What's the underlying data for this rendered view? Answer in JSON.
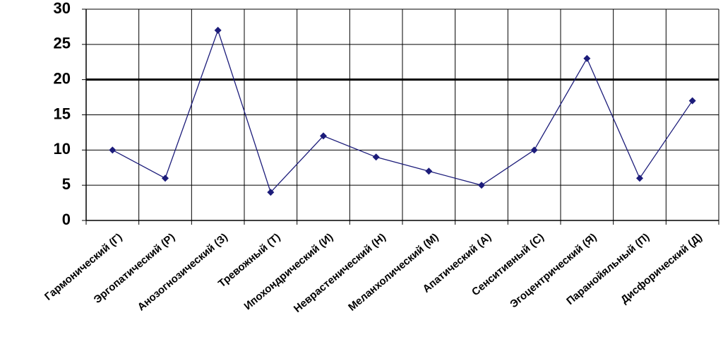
{
  "chart_data": {
    "type": "line",
    "categories": [
      "Гармонический (Г)",
      "Эргопатический (Р)",
      "Анозогнозический (З)",
      "Тревожный (Т)",
      "Ипохондрический (И)",
      "Неврастенический (Н)",
      "Меланхолический (М)",
      "Апатический (А)",
      "Сенситивный (С)",
      "Эгоцентрический (Я)",
      "Паранойяльный (П)",
      "Дисфорический (Д)"
    ],
    "values": [
      10,
      6,
      27,
      4,
      12,
      9,
      7,
      5,
      10,
      23,
      6,
      17
    ],
    "color": "#1c1c7a",
    "ylim": [
      0,
      30
    ],
    "yticks": [
      0,
      5,
      10,
      15,
      20,
      25,
      30
    ],
    "grid": true,
    "reference_line": 20
  }
}
